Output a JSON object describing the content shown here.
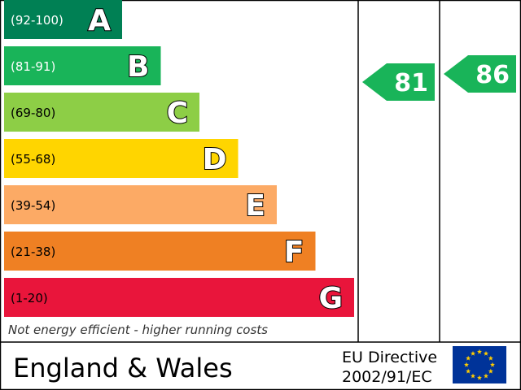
{
  "chart_data": {
    "type": "bar",
    "bands": [
      {
        "range": "(92-100)",
        "letter": "A",
        "color": "#008054",
        "range_color": "#ffffff"
      },
      {
        "range": "(81-91)",
        "letter": "B",
        "color": "#19b459",
        "range_color": "#ffffff"
      },
      {
        "range": "(69-80)",
        "letter": "C",
        "color": "#8dce46",
        "range_color": "#000000"
      },
      {
        "range": "(55-68)",
        "letter": "D",
        "color": "#ffd500",
        "range_color": "#000000"
      },
      {
        "range": "(39-54)",
        "letter": "E",
        "color": "#fcaa65",
        "range_color": "#000000"
      },
      {
        "range": "(21-38)",
        "letter": "F",
        "color": "#ef8023",
        "range_color": "#000000"
      },
      {
        "range": "(1-20)",
        "letter": "G",
        "color": "#e9153b",
        "range_color": "#000000"
      }
    ],
    "ratings": [
      {
        "value": 81,
        "color": "#19b459"
      },
      {
        "value": 86,
        "color": "#19b459"
      }
    ],
    "footnote": "Not energy efficient - higher running costs",
    "region": "England & Wales",
    "directive_line1": "EU Directive",
    "directive_line2": "2002/91/EC",
    "eu_flag": {
      "icon": "eu-flag-icon",
      "color": "#003399",
      "star_color": "#ffcc00"
    }
  }
}
